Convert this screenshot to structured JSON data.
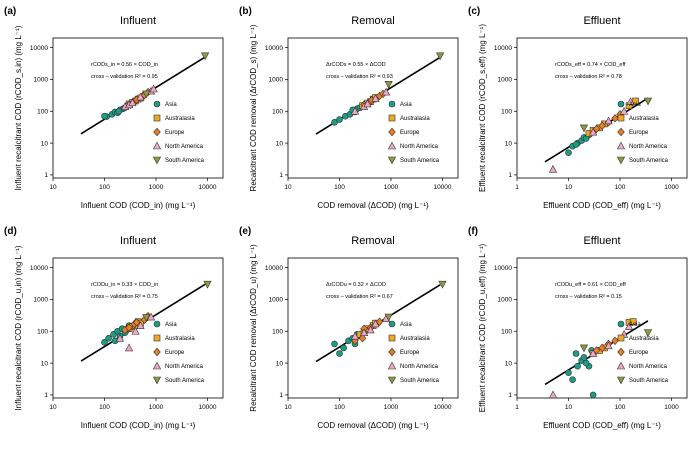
{
  "figure": {
    "panel_letters": [
      "(a)",
      "(b)",
      "(c)",
      "(d)",
      "(e)",
      "(f)"
    ]
  },
  "legend": {
    "entries": [
      {
        "name": "Asia",
        "color": "#1a9c85",
        "shape": "circle"
      },
      {
        "name": "Australasia",
        "color": "#f0a724",
        "shape": "square"
      },
      {
        "name": "Europe",
        "color": "#ee7d22",
        "shape": "diamond"
      },
      {
        "name": "North America",
        "color": "#f0a6c8",
        "shape": "triangle-up"
      },
      {
        "name": "South America",
        "color": "#8f9a3c",
        "shape": "triangle-down"
      }
    ]
  },
  "chart_data": [
    {
      "type": "scatter",
      "panel": "(a)",
      "title": "Influent",
      "ylabel": "Influent recalcitrant COD (rCOD_s,in) (mg L⁻¹)",
      "xlabel": "Influent COD (COD_in) (mg L⁻¹)",
      "xlim": [
        10,
        20000
      ],
      "ylim": [
        0.8,
        20000
      ],
      "xticks": [
        "10",
        "100",
        "1000",
        "10000"
      ],
      "yticks": [
        "1",
        "10",
        "100",
        "1000",
        "10000"
      ],
      "equation": "rCODs_in = 0.56 × COD_in",
      "cv": "cross – validation R² = 0.95",
      "fit": {
        "slope": 0.56,
        "x_range": [
          35,
          9000
        ]
      },
      "series": [
        {
          "name": "Asia",
          "points": [
            [
              110,
              68
            ],
            [
              100,
              70
            ],
            [
              140,
              80
            ],
            [
              160,
              95
            ],
            [
              180,
              90
            ],
            [
              200,
              110
            ],
            [
              230,
              120
            ],
            [
              250,
              130
            ],
            [
              190,
              100
            ],
            [
              270,
              145
            ]
          ]
        },
        {
          "name": "Australasia",
          "points": [
            [
              300,
              170
            ],
            [
              350,
              190
            ],
            [
              400,
              210
            ],
            [
              450,
              240
            ],
            [
              500,
              260
            ]
          ]
        },
        {
          "name": "Europe",
          "points": [
            [
              280,
              150
            ],
            [
              320,
              160
            ],
            [
              380,
              200
            ],
            [
              420,
              230
            ],
            [
              550,
              300
            ],
            [
              600,
              320
            ],
            [
              700,
              400
            ]
          ]
        },
        {
          "name": "North America",
          "points": [
            [
              250,
              140
            ],
            [
              300,
              160
            ],
            [
              350,
              185
            ],
            [
              500,
              280
            ],
            [
              800,
              430
            ],
            [
              900,
              500
            ]
          ]
        },
        {
          "name": "South America",
          "points": [
            [
              650,
              350
            ],
            [
              9000,
              5500
            ]
          ]
        }
      ]
    },
    {
      "type": "scatter",
      "panel": "(b)",
      "title": "Removal",
      "ylabel": "Recalcitrant COD removal (ΔrCOD_s) (mg L⁻¹)",
      "xlabel": "COD removal (ΔCOD) (mg L⁻¹)",
      "xlim": [
        10,
        20000
      ],
      "ylim": [
        0.8,
        20000
      ],
      "xticks": [
        "10",
        "100",
        "1000",
        "10000"
      ],
      "yticks": [
        "1",
        "10",
        "100",
        "1000",
        "10000"
      ],
      "equation": "ΔrCODs = 0.55 × ΔCOD",
      "cv": "cross – validation R² = 0.93",
      "fit": {
        "slope": 0.55,
        "x_range": [
          35,
          9000
        ]
      },
      "series": [
        {
          "name": "Asia",
          "points": [
            [
              80,
              45
            ],
            [
              100,
              55
            ],
            [
              130,
              70
            ],
            [
              160,
              80
            ],
            [
              200,
              95
            ],
            [
              220,
              120
            ],
            [
              250,
              130
            ],
            [
              180,
              110
            ],
            [
              300,
              150
            ]
          ]
        },
        {
          "name": "Australasia",
          "points": [
            [
              280,
              150
            ],
            [
              350,
              180
            ],
            [
              400,
              200
            ],
            [
              450,
              240
            ],
            [
              500,
              270
            ]
          ]
        },
        {
          "name": "Europe",
          "points": [
            [
              300,
              160
            ],
            [
              380,
              190
            ],
            [
              420,
              220
            ],
            [
              600,
              300
            ],
            [
              700,
              350
            ]
          ]
        },
        {
          "name": "North America",
          "points": [
            [
              200,
              100
            ],
            [
              300,
              140
            ],
            [
              350,
              170
            ],
            [
              500,
              250
            ],
            [
              800,
              400
            ]
          ]
        },
        {
          "name": "South America",
          "points": [
            [
              900,
              700
            ],
            [
              9000,
              5500
            ]
          ]
        }
      ]
    },
    {
      "type": "scatter",
      "panel": "(c)",
      "title": "Effluent",
      "ylabel": "Effluent recalcitrant COD (rCOD_s,eff) (mg L⁻¹)",
      "xlabel": "Effluent COD (COD_eff) (mg L⁻¹)",
      "xlim": [
        1,
        2000
      ],
      "ylim": [
        0.8,
        20000
      ],
      "xticks": [
        "1",
        "10",
        "100",
        "1000"
      ],
      "yticks": [
        "1",
        "10",
        "100",
        "1000",
        "10000"
      ],
      "equation": "rCODs_eff = 0.74 × COD_eff",
      "cv": "cross – validation R² = 0.78",
      "fit": {
        "slope": 0.74,
        "x_range": [
          3.5,
          350
        ]
      },
      "series": [
        {
          "name": "Asia",
          "points": [
            [
              10,
              5
            ],
            [
              12,
              8
            ],
            [
              15,
              10
            ],
            [
              18,
              12
            ],
            [
              20,
              15
            ],
            [
              25,
              18
            ],
            [
              14,
              9
            ],
            [
              30,
              22
            ],
            [
              22,
              14
            ]
          ]
        },
        {
          "name": "Australasia",
          "points": [
            [
              25,
              20
            ],
            [
              30,
              25
            ],
            [
              40,
              30
            ],
            [
              50,
              40
            ],
            [
              150,
              150
            ],
            [
              200,
              210
            ]
          ]
        },
        {
          "name": "Europe",
          "points": [
            [
              35,
              28
            ],
            [
              45,
              35
            ],
            [
              60,
              45
            ],
            [
              80,
              60
            ],
            [
              100,
              80
            ]
          ]
        },
        {
          "name": "North America",
          "points": [
            [
              5,
              1.5
            ],
            [
              30,
              22
            ],
            [
              60,
              50
            ],
            [
              120,
              100
            ],
            [
              160,
              200
            ]
          ]
        },
        {
          "name": "South America",
          "points": [
            [
              350,
              210
            ],
            [
              20,
              30
            ]
          ]
        }
      ]
    },
    {
      "type": "scatter",
      "panel": "(d)",
      "title": "Influent",
      "ylabel": "Influent recalcitrant COD (rCOD_u,in) (mg L⁻¹)",
      "xlabel": "Influent COD (COD_in) (mg L⁻¹)",
      "xlim": [
        10,
        20000
      ],
      "ylim": [
        0.8,
        20000
      ],
      "xticks": [
        "10",
        "100",
        "1000",
        "10000"
      ],
      "yticks": [
        "1",
        "10",
        "100",
        "1000",
        "10000"
      ],
      "equation": "rCODu_in = 0.33 × COD_in",
      "cv": "cross – validation R² = 0.75",
      "fit": {
        "slope": 0.33,
        "x_range": [
          35,
          9000
        ]
      },
      "series": [
        {
          "name": "Asia",
          "points": [
            [
              100,
              45
            ],
            [
              120,
              60
            ],
            [
              150,
              80
            ],
            [
              180,
              100
            ],
            [
              200,
              70
            ],
            [
              220,
              120
            ],
            [
              250,
              90
            ],
            [
              300,
              150
            ],
            [
              160,
              50
            ]
          ]
        },
        {
          "name": "Australasia",
          "points": [
            [
              300,
              120
            ],
            [
              350,
              140
            ],
            [
              400,
              150
            ],
            [
              450,
              200
            ],
            [
              500,
              180
            ]
          ]
        },
        {
          "name": "Europe",
          "points": [
            [
              250,
              110
            ],
            [
              300,
              130
            ],
            [
              380,
              170
            ],
            [
              420,
              190
            ],
            [
              600,
              230
            ],
            [
              700,
              300
            ]
          ]
        },
        {
          "name": "North America",
          "points": [
            [
              200,
              60
            ],
            [
              300,
              30
            ],
            [
              400,
              100
            ],
            [
              500,
              150
            ],
            [
              800,
              280
            ]
          ]
        },
        {
          "name": "South America",
          "points": [
            [
              650,
              270
            ],
            [
              10000,
              3000
            ]
          ]
        }
      ]
    },
    {
      "type": "scatter",
      "panel": "(e)",
      "title": "Removal",
      "ylabel": "Recalcitrant COD removal (ΔrCOD_u) (mg L⁻¹)",
      "xlabel": "COD removal (ΔCOD) (mg L⁻¹)",
      "xlim": [
        10,
        20000
      ],
      "ylim": [
        0.8,
        20000
      ],
      "xticks": [
        "10",
        "100",
        "1000",
        "10000"
      ],
      "yticks": [
        "1",
        "10",
        "100",
        "1000",
        "10000"
      ],
      "equation": "ΔrCODu = 0.32 × ΔCOD",
      "cv": "cross – validation R² = 0.67",
      "fit": {
        "slope": 0.32,
        "x_range": [
          35,
          9000
        ]
      },
      "series": [
        {
          "name": "Asia",
          "points": [
            [
              80,
              40
            ],
            [
              100,
              20
            ],
            [
              120,
              30
            ],
            [
              150,
              50
            ],
            [
              180,
              60
            ],
            [
              200,
              40
            ],
            [
              220,
              80
            ],
            [
              250,
              70
            ],
            [
              300,
              100
            ],
            [
              350,
              110
            ]
          ]
        },
        {
          "name": "Australasia",
          "points": [
            [
              250,
              80
            ],
            [
              300,
              100
            ],
            [
              350,
              120
            ],
            [
              450,
              150
            ],
            [
              500,
              180
            ]
          ]
        },
        {
          "name": "Europe",
          "points": [
            [
              200,
              50
            ],
            [
              280,
              60
            ],
            [
              300,
              120
            ],
            [
              400,
              130
            ],
            [
              600,
              200
            ]
          ]
        },
        {
          "name": "North America",
          "points": [
            [
              200,
              70
            ],
            [
              300,
              90
            ],
            [
              400,
              110
            ],
            [
              500,
              170
            ],
            [
              800,
              250
            ]
          ]
        },
        {
          "name": "South America",
          "points": [
            [
              900,
              280
            ],
            [
              10000,
              3000
            ]
          ]
        }
      ]
    },
    {
      "type": "scatter",
      "panel": "(f)",
      "title": "Effluent",
      "ylabel": "Effluent recalcitrant COD (rCOD_u,eff) (mg L⁻¹)",
      "xlabel": "Effluent COD (COD_eff) (mg L⁻¹)",
      "xlim": [
        1,
        2000
      ],
      "ylim": [
        0.8,
        20000
      ],
      "xticks": [
        "1",
        "10",
        "100",
        "1000"
      ],
      "yticks": [
        "1",
        "10",
        "100",
        "1000",
        "10000"
      ],
      "equation": "rCODu_eff = 0.61 × COD_eff",
      "cv": "cross – validation R² = 0.15",
      "fit": {
        "slope": 0.61,
        "x_range": [
          3.5,
          350
        ]
      },
      "series": [
        {
          "name": "Asia",
          "points": [
            [
              10,
              5
            ],
            [
              12,
              3
            ],
            [
              15,
              8
            ],
            [
              18,
              12
            ],
            [
              20,
              15
            ],
            [
              25,
              8
            ],
            [
              14,
              20
            ],
            [
              30,
              1
            ],
            [
              22,
              10
            ],
            [
              28,
              25
            ]
          ]
        },
        {
          "name": "Australasia",
          "points": [
            [
              30,
              20
            ],
            [
              40,
              25
            ],
            [
              50,
              30
            ],
            [
              150,
              190
            ],
            [
              180,
              200
            ]
          ]
        },
        {
          "name": "Europe",
          "points": [
            [
              35,
              25
            ],
            [
              45,
              30
            ],
            [
              60,
              40
            ],
            [
              80,
              50
            ]
          ]
        },
        {
          "name": "North America",
          "points": [
            [
              5,
              1
            ],
            [
              30,
              20
            ],
            [
              60,
              35
            ],
            [
              120,
              80
            ],
            [
              150,
              140
            ]
          ]
        },
        {
          "name": "South America",
          "points": [
            [
              350,
              90
            ],
            [
              20,
              30
            ]
          ]
        }
      ]
    }
  ]
}
